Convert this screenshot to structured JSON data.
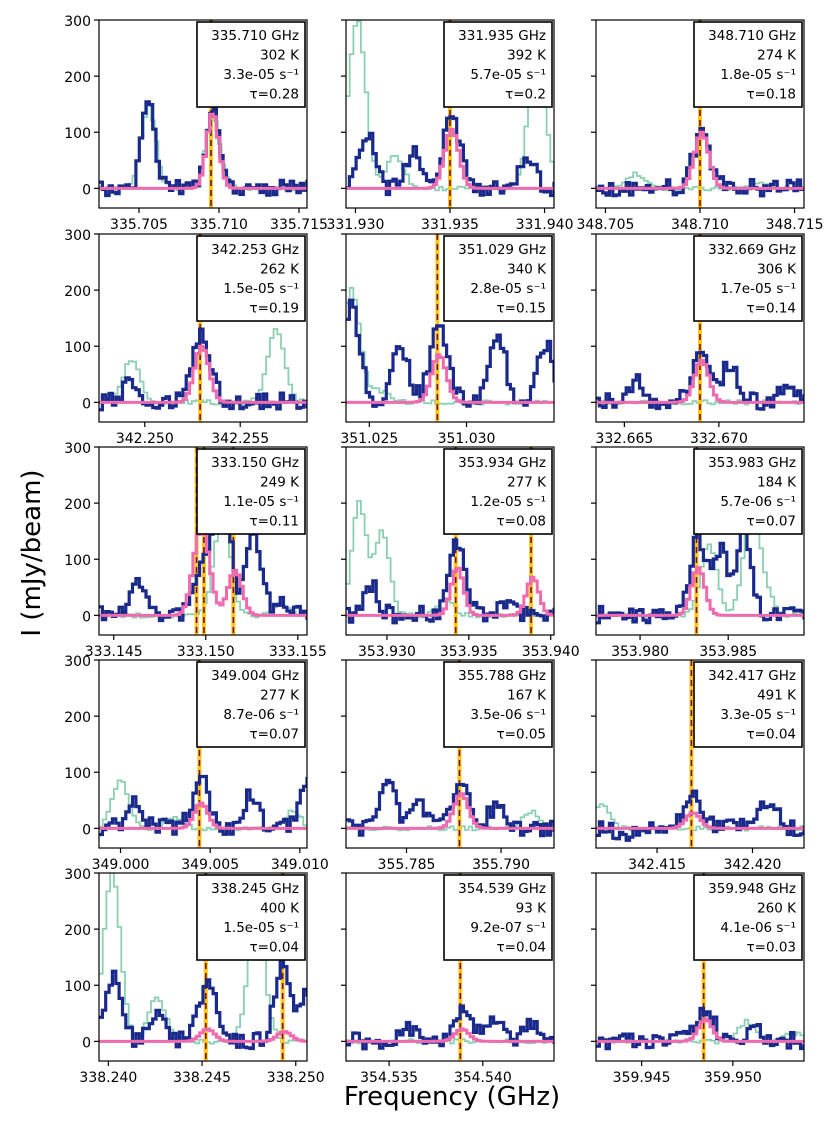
{
  "figure": {
    "ylabel": "I (mJy/beam)",
    "xlabel": "Frequency (GHz)",
    "y_range": [
      -35,
      300
    ],
    "y_ticks": [
      0,
      100,
      200,
      300
    ],
    "colors": {
      "observed": "#1a2a8c",
      "model": "#f06aaf",
      "template": "#8ccfb2",
      "marker_fill": "#ffc51a",
      "marker_dash": "#6b1432"
    }
  },
  "chart_data": [
    {
      "freq": "335.710 GHz",
      "temp": "302 K",
      "aij": "3.3e-05 s⁻¹",
      "tau": "τ=0.28",
      "x_range": [
        335.7025,
        335.7155
      ],
      "xticks": [
        "335.705",
        "335.710",
        "335.715"
      ],
      "xtick_values": [
        335.705,
        335.71,
        335.715
      ],
      "markers": [
        335.7095
      ],
      "center": 335.7095,
      "obs_peak": 130,
      "model_peak": 135,
      "obs_features": [
        [
          335.7055,
          150
        ]
      ],
      "tmpl_features": [
        [
          335.7055,
          145
        ],
        [
          335.7095,
          130
        ]
      ]
    },
    {
      "freq": "331.935 GHz",
      "temp": "392 K",
      "aij": "5.7e-05 s⁻¹",
      "tau": "τ=0.2",
      "x_range": [
        331.9295,
        331.9405
      ],
      "xticks": [
        "331.930",
        "331.935",
        "331.940"
      ],
      "xtick_values": [
        331.93,
        331.935,
        331.94
      ],
      "markers": [
        331.935
      ],
      "center": 331.935,
      "obs_peak": 130,
      "model_peak": 105,
      "obs_features": [
        [
          331.9305,
          100
        ],
        [
          331.933,
          60
        ],
        [
          331.939,
          50
        ]
      ],
      "tmpl_features": [
        [
          331.93,
          300
        ],
        [
          331.932,
          60
        ],
        [
          331.9395,
          240
        ]
      ]
    },
    {
      "freq": "348.710 GHz",
      "temp": "274 K",
      "aij": "1.8e-05 s⁻¹",
      "tau": "τ=0.18",
      "x_range": [
        348.7045,
        348.7155
      ],
      "xticks": [
        "348.705",
        "348.710",
        "348.715"
      ],
      "xtick_values": [
        348.705,
        348.71,
        348.715
      ],
      "markers": [
        348.71
      ],
      "center": 348.71,
      "obs_peak": 95,
      "model_peak": 100,
      "obs_features": [],
      "tmpl_features": [
        [
          348.7065,
          25
        ],
        [
          348.713,
          10
        ]
      ]
    },
    {
      "freq": "342.253 GHz",
      "temp": "262 K",
      "aij": "1.5e-05 s⁻¹",
      "tau": "τ=0.19",
      "x_range": [
        342.2476,
        342.2585
      ],
      "xticks": [
        "342.250",
        "342.255"
      ],
      "xtick_values": [
        342.25,
        342.255
      ],
      "markers": [
        342.2529
      ],
      "center": 342.2529,
      "obs_peak": 120,
      "model_peak": 100,
      "obs_features": [
        [
          342.2492,
          40
        ]
      ],
      "tmpl_features": [
        [
          342.2492,
          75
        ],
        [
          342.2568,
          130
        ]
      ]
    },
    {
      "freq": "351.029 GHz",
      "temp": "340 K",
      "aij": "2.8e-05 s⁻¹",
      "tau": "τ=0.15",
      "x_range": [
        351.0238,
        351.0345
      ],
      "xticks": [
        "351.025",
        "351.030"
      ],
      "xtick_values": [
        351.025,
        351.03
      ],
      "markers": [
        351.0285
      ],
      "center": 351.0285,
      "obs_peak": 140,
      "model_peak": 85,
      "obs_features": [
        [
          351.024,
          180
        ],
        [
          351.0265,
          100
        ],
        [
          351.0315,
          125
        ],
        [
          351.034,
          100
        ]
      ],
      "tmpl_features": [
        [
          351.024,
          200
        ],
        [
          351.0255,
          20
        ]
      ]
    },
    {
      "freq": "332.669 GHz",
      "temp": "306 K",
      "aij": "1.7e-05 s⁻¹",
      "tau": "τ=0.14",
      "x_range": [
        332.6635,
        332.6745
      ],
      "xticks": [
        "332.665",
        "332.670"
      ],
      "xtick_values": [
        332.665,
        332.67
      ],
      "markers": [
        332.669
      ],
      "center": 332.669,
      "obs_peak": 85,
      "model_peak": 75,
      "obs_features": [
        [
          332.6655,
          35
        ],
        [
          332.6705,
          65
        ],
        [
          332.6735,
          30
        ]
      ],
      "tmpl_features": []
    },
    {
      "freq": "333.150 GHz",
      "temp": "249 K",
      "aij": "1.1e-05 s⁻¹",
      "tau": "τ=0.11",
      "x_range": [
        333.1442,
        333.1555
      ],
      "xticks": [
        "333.145",
        "333.150",
        "333.155"
      ],
      "xtick_values": [
        333.145,
        333.15,
        333.155
      ],
      "markers": [
        333.1495,
        333.1499,
        333.1515
      ],
      "center": 333.1497,
      "obs_peak": 85,
      "model_peak": 100,
      "obs_features": [
        [
          333.1462,
          50
        ],
        [
          333.1508,
          290
        ],
        [
          333.1525,
          140
        ],
        [
          333.154,
          25
        ]
      ],
      "tmpl_features": [
        [
          333.1508,
          180
        ],
        [
          333.154,
          20
        ]
      ]
    },
    {
      "freq": "353.934 GHz",
      "temp": "277 K",
      "aij": "1.2e-05 s⁻¹",
      "tau": "τ=0.08",
      "x_range": [
        353.9275,
        353.9402
      ],
      "xticks": [
        "353.930",
        "353.935",
        "353.940"
      ],
      "xtick_values": [
        353.93,
        353.935,
        353.94
      ],
      "markers": [
        353.9342,
        353.9388
      ],
      "center": 353.9342,
      "obs_peak": 130,
      "model_peak": 85,
      "obs_features": [
        [
          353.929,
          50
        ],
        [
          353.9372,
          20
        ]
      ],
      "tmpl_features": [
        [
          353.9282,
          200
        ],
        [
          353.9296,
          150
        ],
        [
          353.9335,
          30
        ]
      ]
    },
    {
      "freq": "353.983 GHz",
      "temp": "184 K",
      "aij": "5.7e-06 s⁻¹",
      "tau": "τ=0.07",
      "x_range": [
        353.9775,
        353.9893
      ],
      "xticks": [
        "353.980",
        "353.985"
      ],
      "xtick_values": [
        353.98,
        353.985
      ],
      "markers": [
        353.9832
      ],
      "center": 353.9832,
      "obs_peak": 140,
      "model_peak": 85,
      "obs_features": [
        [
          353.9845,
          115
        ],
        [
          353.9858,
          160
        ],
        [
          353.9885,
          20
        ]
      ],
      "tmpl_features": [
        [
          353.9838,
          130
        ],
        [
          353.9862,
          180
        ],
        [
          353.987,
          40
        ]
      ]
    },
    {
      "freq": "349.004 GHz",
      "temp": "277 K",
      "aij": "8.7e-06 s⁻¹",
      "tau": "τ=0.07",
      "x_range": [
        348.9988,
        349.0104
      ],
      "xticks": [
        "349.000",
        "349.005",
        "349.010"
      ],
      "xtick_values": [
        349.0,
        349.005,
        349.01
      ],
      "markers": [
        349.0044
      ],
      "center": 349.0044,
      "obs_peak": 85,
      "model_peak": 45,
      "obs_features": [
        [
          349.0007,
          50
        ],
        [
          349.0072,
          60
        ],
        [
          349.0103,
          90
        ]
      ],
      "tmpl_features": [
        [
          348.9999,
          88
        ],
        [
          349.0029,
          20
        ],
        [
          349.0095,
          30
        ]
      ]
    },
    {
      "freq": "355.788 GHz",
      "temp": "167 K",
      "aij": "3.5e-06 s⁻¹",
      "tau": "τ=0.05",
      "x_range": [
        355.7818,
        355.7928
      ],
      "xticks": [
        "355.785",
        "355.790"
      ],
      "xtick_values": [
        355.785,
        355.79
      ],
      "markers": [
        355.7878
      ],
      "center": 355.7878,
      "obs_peak": 70,
      "model_peak": 62,
      "obs_features": [
        [
          355.7839,
          85
        ],
        [
          355.7855,
          55
        ],
        [
          355.7897,
          40
        ]
      ],
      "tmpl_features": [
        [
          355.7915,
          30
        ]
      ]
    },
    {
      "freq": "342.417 GHz",
      "temp": "491 K",
      "aij": "3.3e-05 s⁻¹",
      "tau": "τ=0.04",
      "x_range": [
        342.4118,
        342.4227
      ],
      "xticks": [
        "342.415",
        "342.420"
      ],
      "xtick_values": [
        342.415,
        342.42
      ],
      "markers": [
        342.4168
      ],
      "center": 342.4168,
      "obs_peak": 55,
      "model_peak": 28,
      "obs_features": [
        [
          342.4208,
          50
        ],
        [
          342.4133,
          -15
        ]
      ],
      "tmpl_features": [
        [
          342.412,
          40
        ]
      ]
    },
    {
      "freq": "338.245 GHz",
      "temp": "400 K",
      "aij": "1.5e-05 s⁻¹",
      "tau": "τ=0.04",
      "x_range": [
        338.2395,
        338.2506
      ],
      "xticks": [
        "338.240",
        "338.245",
        "338.250"
      ],
      "xtick_values": [
        338.24,
        338.245,
        338.25
      ],
      "markers": [
        338.2452,
        338.2493
      ],
      "center": 338.2452,
      "obs_peak": 100,
      "model_peak": 22,
      "obs_features": [
        [
          338.2402,
          120
        ],
        [
          338.2425,
          45
        ],
        [
          338.2492,
          135
        ],
        [
          338.2505,
          80
        ]
      ],
      "tmpl_features": [
        [
          338.2401,
          300
        ],
        [
          338.2425,
          80
        ],
        [
          338.2478,
          220
        ]
      ]
    },
    {
      "freq": "354.539 GHz",
      "temp": "93 K",
      "aij": "9.2e-07 s⁻¹",
      "tau": "τ=0.04",
      "x_range": [
        354.5327,
        354.5438
      ],
      "xticks": [
        "354.535",
        "354.540"
      ],
      "xtick_values": [
        354.535,
        354.54
      ],
      "markers": [
        354.5388
      ],
      "center": 354.5388,
      "obs_peak": 48,
      "model_peak": 22,
      "obs_features": [
        [
          354.5405,
          40
        ],
        [
          354.536,
          20
        ],
        [
          354.5425,
          25
        ]
      ],
      "tmpl_features": []
    },
    {
      "freq": "359.948 GHz",
      "temp": "260 K",
      "aij": "4.1e-06 s⁻¹",
      "tau": "τ=0.03",
      "x_range": [
        359.9425,
        359.9539
      ],
      "xticks": [
        "359.945",
        "359.950"
      ],
      "xtick_values": [
        359.945,
        359.95
      ],
      "markers": [
        359.9484
      ],
      "center": 359.9484,
      "obs_peak": 55,
      "model_peak": 40,
      "obs_features": [
        [
          359.9512,
          20
        ]
      ],
      "tmpl_features": [
        [
          359.9507,
          35
        ],
        [
          359.9532,
          15
        ]
      ]
    }
  ]
}
